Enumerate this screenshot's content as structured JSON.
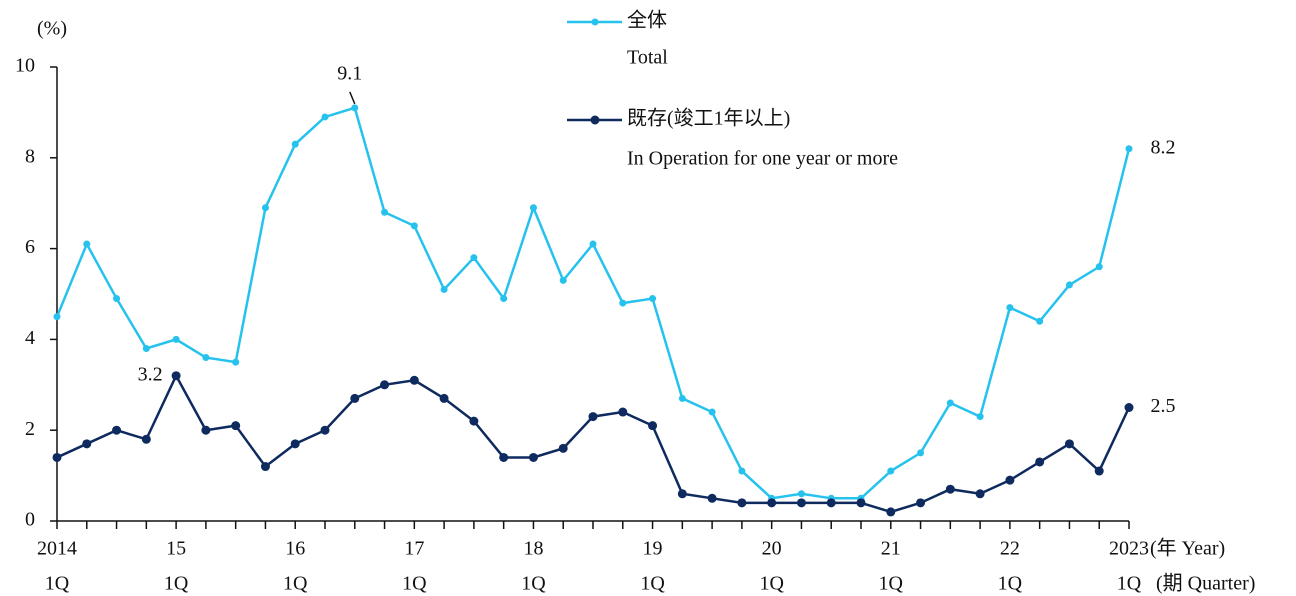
{
  "chart_data": {
    "type": "line",
    "y_label": "(%)",
    "x_unit_year": "(年 Year)",
    "x_unit_quarter": "(期 Quarter)",
    "categories": [
      "2014",
      null,
      null,
      null,
      "15",
      null,
      null,
      null,
      "16",
      null,
      null,
      null,
      "17",
      null,
      null,
      null,
      "18",
      null,
      null,
      null,
      "19",
      null,
      null,
      null,
      "20",
      null,
      null,
      null,
      "21",
      null,
      null,
      null,
      "22",
      null,
      null,
      null,
      "2023"
    ],
    "category_sublabels": [
      "1Q",
      null,
      null,
      null,
      "1Q",
      null,
      null,
      null,
      "1Q",
      null,
      null,
      null,
      "1Q",
      null,
      null,
      null,
      "1Q",
      null,
      null,
      null,
      "1Q",
      null,
      null,
      null,
      "1Q",
      null,
      null,
      null,
      "1Q",
      null,
      null,
      null,
      "1Q",
      null,
      null,
      null,
      "1Q"
    ],
    "ylim": [
      0,
      10
    ],
    "yticks": [
      0,
      2,
      4,
      6,
      8,
      10
    ],
    "series": [
      {
        "name": "全体",
        "name_en": "Total",
        "color": "#26c2ee",
        "values": [
          4.5,
          6.1,
          4.9,
          3.8,
          4.0,
          3.6,
          3.5,
          6.9,
          8.3,
          8.9,
          9.1,
          6.8,
          6.5,
          5.1,
          5.8,
          4.9,
          6.9,
          5.3,
          6.1,
          4.8,
          4.9,
          2.7,
          2.4,
          1.1,
          0.5,
          0.6,
          0.5,
          0.5,
          1.1,
          1.5,
          2.6,
          2.3,
          4.7,
          4.4,
          5.2,
          5.6,
          8.2
        ],
        "value_labels": [
          null,
          null,
          null,
          null,
          null,
          null,
          null,
          null,
          null,
          null,
          "9.1",
          null,
          null,
          null,
          null,
          null,
          null,
          null,
          null,
          null,
          null,
          null,
          null,
          null,
          null,
          null,
          null,
          null,
          null,
          null,
          null,
          null,
          null,
          null,
          null,
          null,
          "8.2"
        ]
      },
      {
        "name": "既存(竣工1年以上)",
        "name_en": "In Operation for one year or more",
        "color": "#0e2a5e",
        "values": [
          1.4,
          1.7,
          2.0,
          1.8,
          3.2,
          2.0,
          2.1,
          1.2,
          1.7,
          2.0,
          2.7,
          3.0,
          3.1,
          2.7,
          2.2,
          1.4,
          1.4,
          1.6,
          2.3,
          2.4,
          2.1,
          0.6,
          0.5,
          0.4,
          0.4,
          0.4,
          0.4,
          0.4,
          0.2,
          0.4,
          0.7,
          0.6,
          0.9,
          1.3,
          1.7,
          1.1,
          2.5
        ],
        "value_labels": [
          null,
          null,
          null,
          null,
          "3.2",
          null,
          null,
          null,
          null,
          null,
          null,
          null,
          null,
          null,
          null,
          null,
          null,
          null,
          null,
          null,
          null,
          null,
          null,
          null,
          null,
          null,
          null,
          null,
          null,
          null,
          null,
          null,
          null,
          null,
          null,
          null,
          "2.5"
        ]
      }
    ]
  }
}
